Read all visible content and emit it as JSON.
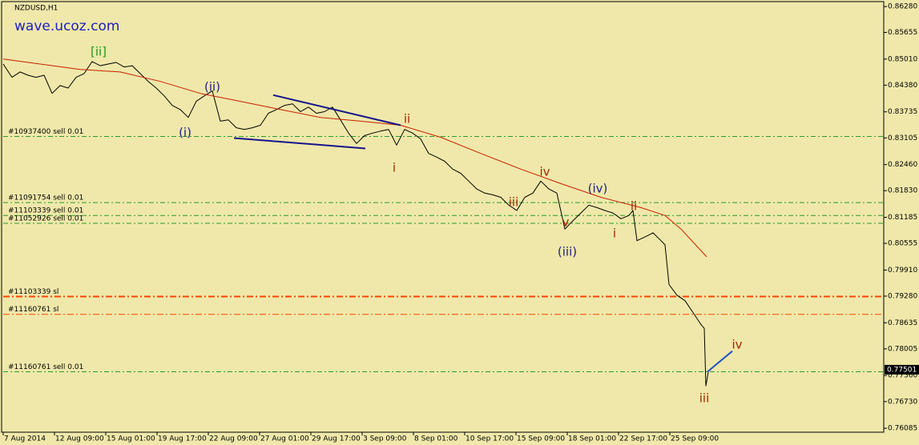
{
  "chart_data": {
    "type": "line",
    "title": "NZDUSD,H1",
    "watermark": "wave.ucoz.com",
    "xlim": [
      0,
      1099
    ],
    "ylim": [
      0.7599,
      0.864
    ],
    "xticks": [
      {
        "value": 0,
        "label": "7 Aug 2014"
      },
      {
        "value": 64,
        "label": "12 Aug 09:00"
      },
      {
        "value": 128,
        "label": "15 Aug 01:00"
      },
      {
        "value": 192,
        "label": "19 Aug 17:00"
      },
      {
        "value": 256,
        "label": "22 Aug 09:00"
      },
      {
        "value": 320,
        "label": "27 Aug 01:00"
      },
      {
        "value": 384,
        "label": "29 Aug 17:00"
      },
      {
        "value": 448,
        "label": "3 Sep 09:00"
      },
      {
        "value": 512,
        "label": "8 Sep 01:00"
      },
      {
        "value": 576,
        "label": "10 Sep 17:00"
      },
      {
        "value": 640,
        "label": "15 Sep 09:00"
      },
      {
        "value": 704,
        "label": "18 Sep 01:00"
      },
      {
        "value": 768,
        "label": "22 Sep 17:00"
      },
      {
        "value": 832,
        "label": "25 Sep 09:00"
      }
    ],
    "yticks": [
      {
        "value": 0.8628,
        "label": "0.86280"
      },
      {
        "value": 0.85655,
        "label": "0.85655"
      },
      {
        "value": 0.8501,
        "label": "0.85010"
      },
      {
        "value": 0.8438,
        "label": "0.84380"
      },
      {
        "value": 0.83735,
        "label": "0.83735"
      },
      {
        "value": 0.83105,
        "label": "0.83105"
      },
      {
        "value": 0.8246,
        "label": "0.82460"
      },
      {
        "value": 0.8183,
        "label": "0.81830"
      },
      {
        "value": 0.81185,
        "label": "0.81185"
      },
      {
        "value": 0.80555,
        "label": "0.80555"
      },
      {
        "value": 0.7991,
        "label": "0.79910"
      },
      {
        "value": 0.7928,
        "label": "0.79280"
      },
      {
        "value": 0.78635,
        "label": "0.78635"
      },
      {
        "value": 0.78005,
        "label": "0.78005"
      },
      {
        "value": 0.7736,
        "label": "0.77360"
      },
      {
        "value": 0.7673,
        "label": "0.76730"
      },
      {
        "value": 0.76085,
        "label": "0.76085"
      }
    ],
    "current_price": 0.77501,
    "series": [
      {
        "color": "#000000",
        "x": [
          0,
          11,
          21,
          31,
          41,
          51,
          61,
          71,
          81,
          91,
          101,
          111,
          121,
          131,
          141,
          151,
          161,
          171,
          181,
          191,
          201,
          211,
          221,
          231,
          241,
          251,
          261,
          271,
          281,
          291,
          301,
          311,
          321,
          331,
          341,
          351,
          361,
          371,
          381,
          391,
          401,
          411,
          421,
          431,
          441,
          451,
          461,
          471,
          481,
          491,
          501,
          511,
          521,
          531,
          541,
          551,
          561,
          571,
          581,
          591,
          601,
          611,
          621,
          631,
          641,
          651,
          661,
          671,
          681,
          691,
          701,
          711,
          721,
          731,
          741,
          751,
          761,
          771,
          781,
          786,
          791,
          801,
          811,
          821,
          826,
          831,
          841,
          851,
          861,
          871,
          875,
          877,
          880
        ],
        "values": [
          0.8489,
          0.8457,
          0.847,
          0.8462,
          0.8457,
          0.8462,
          0.8418,
          0.8437,
          0.8431,
          0.8457,
          0.8466,
          0.8495,
          0.8485,
          0.8489,
          0.8493,
          0.8482,
          0.8485,
          0.8466,
          0.8447,
          0.8431,
          0.8412,
          0.8389,
          0.8379,
          0.836,
          0.8399,
          0.8412,
          0.8424,
          0.8351,
          0.8354,
          0.8335,
          0.8331,
          0.8335,
          0.8341,
          0.837,
          0.8379,
          0.8389,
          0.8393,
          0.8374,
          0.8385,
          0.837,
          0.8374,
          0.8385,
          0.8354,
          0.8322,
          0.8297,
          0.8316,
          0.8322,
          0.8327,
          0.8331,
          0.8293,
          0.8331,
          0.8322,
          0.8308,
          0.8273,
          0.8264,
          0.8254,
          0.8235,
          0.8225,
          0.8206,
          0.8187,
          0.8177,
          0.8173,
          0.8167,
          0.8148,
          0.8135,
          0.8167,
          0.8177,
          0.8206,
          0.8187,
          0.8177,
          0.809,
          0.811,
          0.8129,
          0.8148,
          0.8142,
          0.8135,
          0.8129,
          0.8115,
          0.8123,
          0.8135,
          0.8062,
          0.8071,
          0.8081,
          0.8062,
          0.8052,
          0.7956,
          0.793,
          0.7917,
          0.7888,
          0.7859,
          0.785,
          0.7711,
          0.7744
        ]
      },
      {
        "color": "#c81e00",
        "x": [
          0,
          96,
          146,
          196,
          246,
          296,
          346,
          396,
          446,
          496,
          546,
          596,
          646,
          696,
          746,
          796,
          826,
          846,
          878
        ],
        "values": [
          0.8501,
          0.8476,
          0.847,
          0.8447,
          0.8418,
          0.8399,
          0.8379,
          0.836,
          0.8351,
          0.8341,
          0.8312,
          0.8273,
          0.8235,
          0.82,
          0.8167,
          0.8142,
          0.8123,
          0.809,
          0.8023
        ]
      }
    ],
    "trendlines": [
      {
        "color": "#14148c",
        "x": [
          337,
          496
        ],
        "values": [
          0.8414,
          0.8341
        ]
      },
      {
        "color": "#14148c",
        "x": [
          288,
          452
        ],
        "values": [
          0.831,
          0.8285
        ]
      },
      {
        "color": "#1e50c8",
        "x": [
          879,
          910
        ],
        "values": [
          0.7745,
          0.7795
        ]
      }
    ],
    "orders": [
      {
        "label": "#10937400 sell 0.01",
        "value": 0.8314,
        "color": "#2a9a2a"
      },
      {
        "label": "#11091754 sell 0.01",
        "value": 0.8154,
        "color": "#2a9a2a"
      },
      {
        "label": "#11103339 sell 0.01",
        "value": 0.8123,
        "color": "#2a9a2a"
      },
      {
        "label": "#11052926 sell 0.01",
        "value": 0.8104,
        "color": "#2a9a2a"
      },
      {
        "label": "#11103339 sl",
        "value": 0.7927,
        "color": "#ff4500"
      },
      {
        "label": "#11160761 sl",
        "value": 0.7884,
        "color": "#ff4500"
      },
      {
        "label": "#11160761 sell 0.01",
        "value": 0.7745,
        "color": "#2a9a2a"
      }
    ],
    "annotations": [
      {
        "text": "[ii]",
        "color": "#1e9a1e"
      },
      {
        "text": "(ii)",
        "color": "#1e1e8c"
      },
      {
        "text": "(i)",
        "color": "#1e1e8c"
      },
      {
        "text": "ii",
        "color": "#a02800"
      },
      {
        "text": "i",
        "color": "#a02800"
      },
      {
        "text": "iv",
        "color": "#a02800"
      },
      {
        "text": "iii",
        "color": "#a02800"
      },
      {
        "text": "v",
        "color": "#a02800"
      },
      {
        "text": "(iii)",
        "color": "#1e1e8c"
      },
      {
        "text": "(iv)",
        "color": "#1e1e8c"
      },
      {
        "text": "ii",
        "color": "#a02800"
      },
      {
        "text": "i",
        "color": "#a02800"
      },
      {
        "text": "iv",
        "color": "#a02800"
      },
      {
        "text": "iii",
        "color": "#a02800"
      }
    ]
  }
}
